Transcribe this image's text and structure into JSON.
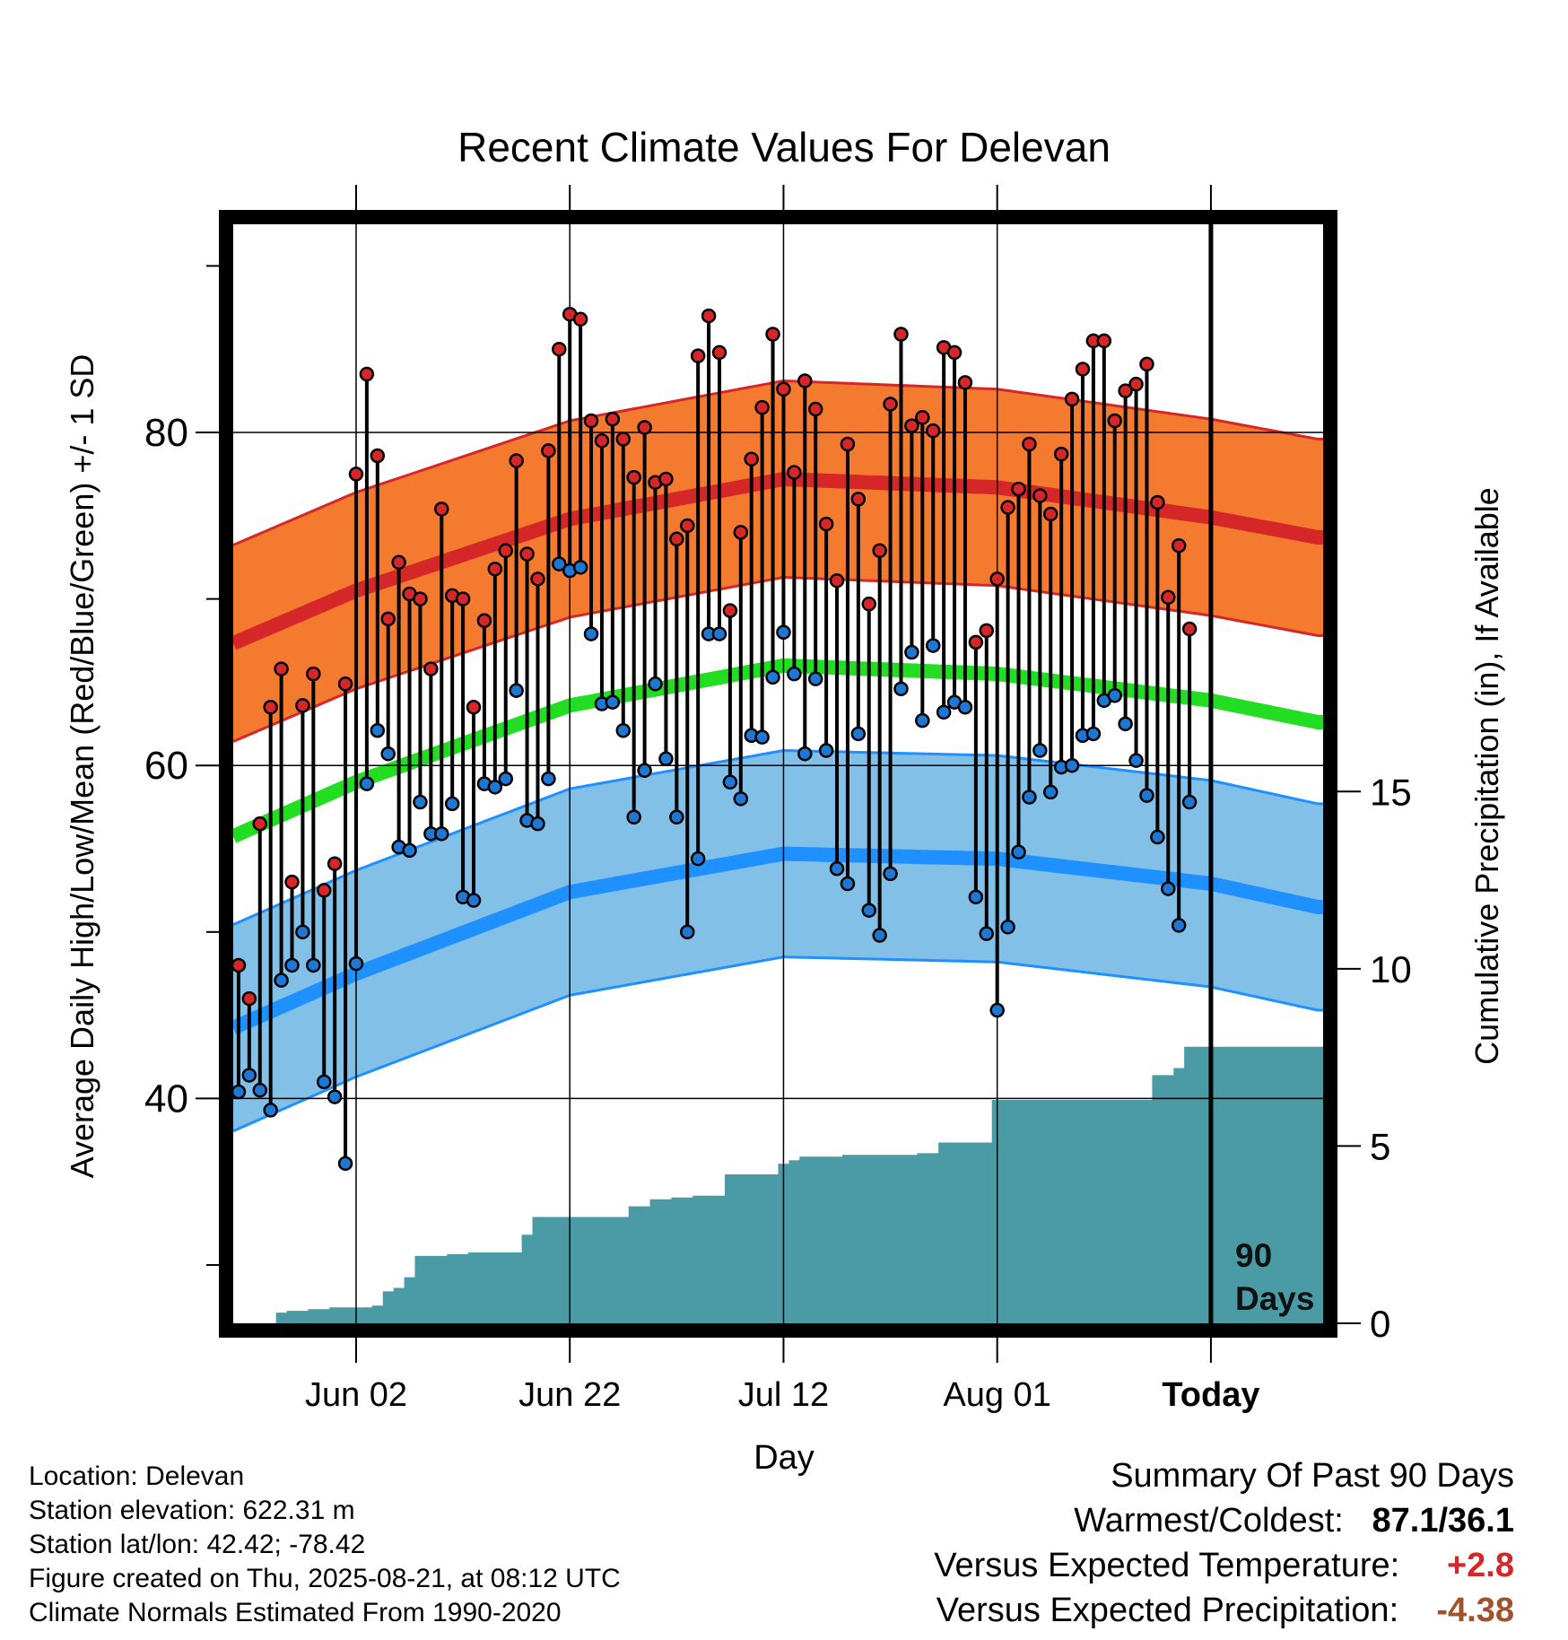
{
  "chart_data": {
    "type": "line",
    "title": "Recent Climate Values For Delevan",
    "xlabel": "Day",
    "ylabel": "Average Daily High/Low/Mean (Red/Blue/Green) +/- 1 SD",
    "y2label": "Cumulative Precipitation (in), If Available",
    "ylim": [
      26.5,
      92.5
    ],
    "y_ticks": [
      "40",
      "60",
      "80"
    ],
    "y2lim": [
      0,
      31
    ],
    "y2_ticks": [
      "0",
      "5",
      "10",
      "15"
    ],
    "x_ticks": [
      "Jun 02",
      "Jun 22",
      "Jul 12",
      "Aug 01",
      "Today"
    ],
    "x_tick_days": [
      12,
      32,
      52,
      72,
      92
    ],
    "xlim": [
      0.5,
      102.5
    ],
    "today_marker": {
      "day": 92,
      "label_1": "90",
      "label_2": "Days"
    },
    "normals": {
      "high_mean": {
        "days": [
          0,
          12,
          32,
          52,
          72,
          92,
          102
        ],
        "values": [
          67.2,
          70.5,
          74.8,
          77.2,
          76.7,
          74.9,
          73.7
        ]
      },
      "high_sd": 5.9,
      "low_mean": {
        "days": [
          0,
          12,
          32,
          52,
          72,
          92,
          102
        ],
        "values": [
          44.1,
          47.5,
          52.4,
          54.7,
          54.4,
          52.9,
          51.5
        ]
      },
      "low_sd": 6.2,
      "daily_mean": {
        "days": [
          0,
          12,
          32,
          52,
          72,
          92,
          102
        ],
        "values": [
          55.6,
          59.0,
          63.6,
          66.0,
          65.5,
          63.9,
          62.6
        ]
      }
    },
    "series": [
      {
        "name": "High",
        "color": "#d62728",
        "values": [
          48.0,
          46.0,
          56.5,
          63.5,
          65.8,
          53.0,
          63.6,
          65.5,
          52.5,
          54.1,
          64.9,
          77.5,
          83.5,
          78.6,
          68.8,
          72.2,
          70.3,
          70.0,
          65.8,
          75.4,
          70.2,
          70.0,
          63.5,
          68.7,
          71.8,
          72.9,
          78.3,
          72.7,
          71.2,
          78.9,
          85.0,
          87.1,
          86.8,
          80.7,
          79.5,
          80.8,
          79.6,
          77.3,
          80.3,
          77.0,
          77.2,
          73.6,
          74.4,
          84.6,
          87.0,
          84.8,
          69.3,
          74.0,
          78.4,
          81.5,
          85.9,
          82.6,
          77.6,
          83.1,
          81.4,
          74.5,
          71.1,
          79.3,
          76.0,
          69.7,
          72.9,
          81.7,
          85.9,
          80.4,
          80.9,
          80.1,
          85.1,
          84.8,
          83.0,
          67.4,
          68.1,
          71.2,
          75.5,
          76.6,
          79.3,
          76.2,
          75.1,
          78.7,
          82.0,
          83.8,
          85.5,
          85.5,
          80.7,
          82.5,
          82.9,
          84.1,
          75.8,
          70.1,
          73.2,
          68.2
        ]
      },
      {
        "name": "Low",
        "color": "#1f77d4",
        "values": [
          40.4,
          41.4,
          40.5,
          39.3,
          47.1,
          48.0,
          50.0,
          48.0,
          41.0,
          40.1,
          36.1,
          48.1,
          58.9,
          62.1,
          60.7,
          55.1,
          54.9,
          57.8,
          55.9,
          55.9,
          57.7,
          52.1,
          51.9,
          58.9,
          58.7,
          59.2,
          64.5,
          56.7,
          56.5,
          59.2,
          72.1,
          71.7,
          71.9,
          67.9,
          63.7,
          63.8,
          62.1,
          56.9,
          59.7,
          64.9,
          60.4,
          56.9,
          50.0,
          54.4,
          67.9,
          67.9,
          59.0,
          58.0,
          61.8,
          61.7,
          65.3,
          68.0,
          65.5,
          60.7,
          65.2,
          60.9,
          53.8,
          52.9,
          61.9,
          51.3,
          49.8,
          53.5,
          64.6,
          66.8,
          62.7,
          67.2,
          63.2,
          63.8,
          63.5,
          52.1,
          49.9,
          45.3,
          50.3,
          54.8,
          58.1,
          60.9,
          58.4,
          59.9,
          60.0,
          61.8,
          61.9,
          63.9,
          64.2,
          62.5,
          60.3,
          58.2,
          55.7,
          52.6,
          50.4,
          57.8
        ]
      }
    ],
    "precipitation": {
      "days": [
        1,
        4,
        5,
        6,
        7,
        8,
        9,
        10,
        11,
        12,
        13,
        14,
        15,
        16,
        17,
        18,
        19,
        20,
        21,
        22,
        23,
        24,
        25,
        26,
        27,
        28,
        29,
        30,
        31,
        32,
        33,
        34,
        35,
        36,
        37,
        38,
        39,
        40,
        41,
        42,
        43,
        44,
        45,
        46,
        47,
        48,
        49,
        50,
        51,
        52,
        53,
        54,
        55,
        56,
        57,
        58,
        59,
        60,
        61,
        62,
        63,
        64,
        65,
        66,
        67,
        68,
        69,
        70,
        71,
        72,
        73,
        74,
        75,
        76,
        77,
        78,
        79,
        80,
        81,
        82,
        83,
        84,
        85,
        86,
        87,
        88,
        89,
        90,
        91,
        102
      ],
      "values": [
        0.0,
        0.0,
        0.3,
        0.35,
        0.35,
        0.4,
        0.4,
        0.45,
        0.45,
        0.45,
        0.45,
        0.5,
        0.9,
        1.0,
        1.3,
        1.9,
        1.9,
        1.9,
        1.95,
        1.95,
        2.0,
        2.0,
        2.0,
        2.0,
        2.0,
        2.5,
        3.0,
        3.0,
        3.0,
        3.0,
        3.0,
        3.0,
        3.0,
        3.0,
        3.0,
        3.3,
        3.3,
        3.5,
        3.5,
        3.55,
        3.55,
        3.6,
        3.6,
        3.6,
        4.2,
        4.2,
        4.2,
        4.2,
        4.2,
        4.5,
        4.6,
        4.7,
        4.7,
        4.7,
        4.7,
        4.75,
        4.75,
        4.75,
        4.75,
        4.75,
        4.75,
        4.75,
        4.8,
        4.8,
        5.1,
        5.1,
        5.1,
        5.1,
        5.1,
        6.3,
        6.3,
        6.3,
        6.3,
        6.3,
        6.3,
        6.3,
        6.3,
        6.3,
        6.3,
        6.3,
        6.3,
        6.3,
        6.3,
        6.3,
        7.0,
        7.0,
        7.2,
        7.8,
        7.8,
        7.8
      ]
    },
    "legend": "none",
    "grid": true
  },
  "info": {
    "location": "Location: Delevan",
    "elevation": "Station elevation: 622.31 m",
    "latlon": "Station lat/lon: 42.42; -78.42",
    "created": "Figure created on Thu, 2025-08-21, at 08:12 UTC",
    "normals": "Climate Normals Estimated From 1990-2020"
  },
  "summary": {
    "title": "Summary Of Past 90 Days",
    "warm_label": "Warmest/Coldest:",
    "warm_value": "87.1/36.1",
    "temp_label": "Versus Expected Temperature:",
    "temp_value": "+2.8",
    "precip_label": "Versus Expected Precipitation:",
    "precip_value": "-4.38"
  },
  "colors": {
    "high_band": "#f47a30",
    "high_line": "#d62728",
    "low_band": "#82c0e8",
    "low_line": "#1e90ff",
    "mean_line": "#22dd22",
    "precip": "#4a9ba5"
  }
}
